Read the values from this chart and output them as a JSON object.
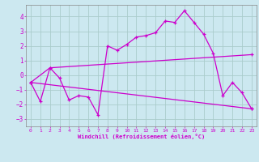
{
  "title": "",
  "xlabel": "Windchill (Refroidissement éolien,°C)",
  "bg_color": "#cce8f0",
  "grid_color": "#aacccc",
  "line_color": "#cc00cc",
  "xlim": [
    -0.5,
    23.5
  ],
  "ylim": [
    -3.5,
    4.8
  ],
  "yticks": [
    -3,
    -2,
    -1,
    0,
    1,
    2,
    3,
    4
  ],
  "xticks": [
    0,
    1,
    2,
    3,
    4,
    5,
    6,
    7,
    8,
    9,
    10,
    11,
    12,
    13,
    14,
    15,
    16,
    17,
    18,
    19,
    20,
    21,
    22,
    23
  ],
  "series1": [
    [
      0,
      -0.5
    ],
    [
      1,
      -1.8
    ],
    [
      2,
      0.5
    ],
    [
      3,
      -0.2
    ],
    [
      4,
      -1.7
    ],
    [
      5,
      -1.4
    ],
    [
      6,
      -1.5
    ],
    [
      7,
      -2.7
    ],
    [
      8,
      2.0
    ],
    [
      9,
      1.7
    ],
    [
      10,
      2.1
    ],
    [
      11,
      2.6
    ],
    [
      12,
      2.7
    ],
    [
      13,
      2.9
    ],
    [
      14,
      3.7
    ],
    [
      15,
      3.6
    ],
    [
      16,
      4.4
    ],
    [
      17,
      3.6
    ],
    [
      18,
      2.8
    ],
    [
      19,
      1.5
    ],
    [
      20,
      -1.4
    ],
    [
      21,
      -0.5
    ],
    [
      22,
      -1.2
    ],
    [
      23,
      -2.3
    ]
  ],
  "series2": [
    [
      0,
      -0.5
    ],
    [
      2,
      0.5
    ],
    [
      23,
      1.4
    ]
  ],
  "series3": [
    [
      0,
      -0.5
    ],
    [
      23,
      -2.3
    ]
  ]
}
